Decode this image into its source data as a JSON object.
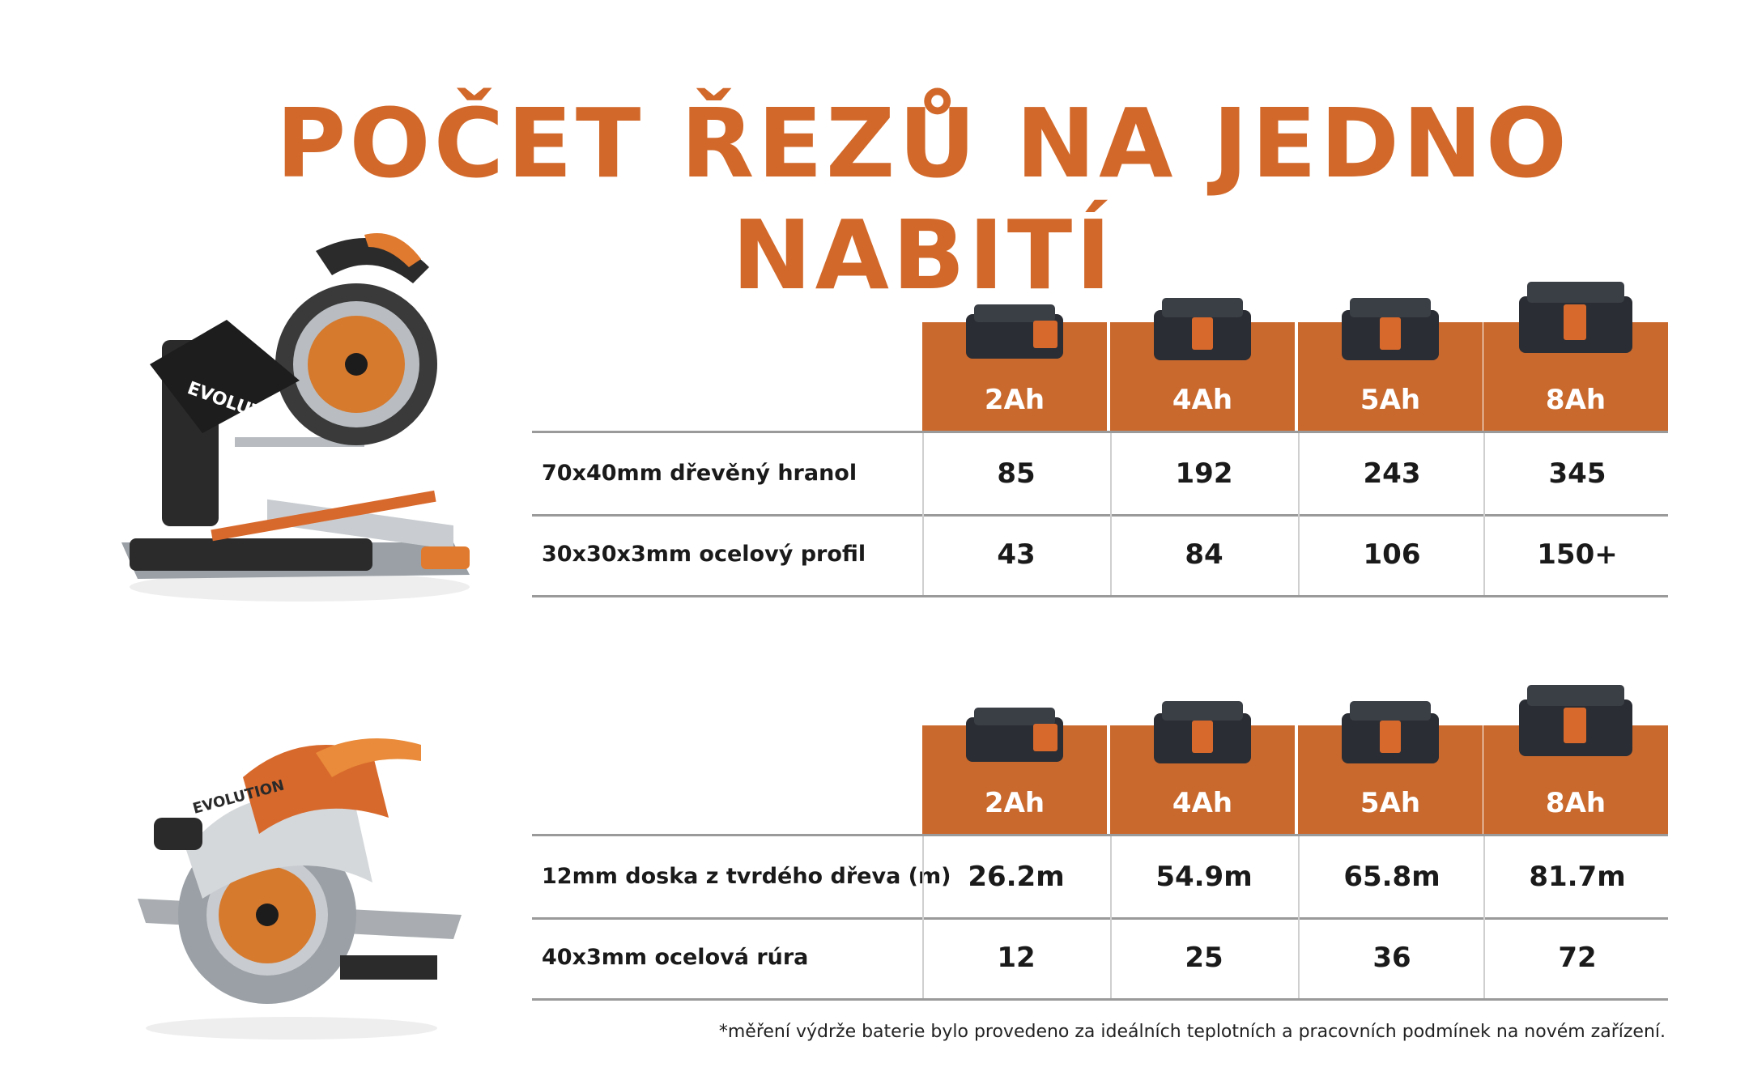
{
  "title": "POČET ŘEZŮ NA JEDNO NABITÍ",
  "colors": {
    "accent": "#c9692e",
    "title": "#d2692b"
  },
  "tables": [
    {
      "tool_icon": "miter-saw-image",
      "brand": "EVOLUTION",
      "headers": [
        "2Ah",
        "4Ah",
        "5Ah",
        "8Ah"
      ],
      "rows": [
        {
          "label": "70x40mm dřevěný hranol",
          "values": [
            "85",
            "192",
            "243",
            "345"
          ]
        },
        {
          "label": "30x30x3mm ocelový profil",
          "values": [
            "43",
            "84",
            "106",
            "150+"
          ]
        }
      ]
    },
    {
      "tool_icon": "circular-saw-image",
      "brand": "EVOLUTION",
      "headers": [
        "2Ah",
        "4Ah",
        "5Ah",
        "8Ah"
      ],
      "rows": [
        {
          "label": "12mm doska z tvrdého dřeva (m)",
          "values": [
            "26.2m",
            "54.9m",
            "65.8m",
            "81.7m"
          ]
        },
        {
          "label": "40x3mm ocelová rúra",
          "values": [
            "12",
            "25",
            "36",
            "72"
          ]
        }
      ]
    }
  ],
  "footnote": "*měření výdrže baterie bylo provedeno za ideálních teplotních a pracovních podmínek na novém zařízení."
}
